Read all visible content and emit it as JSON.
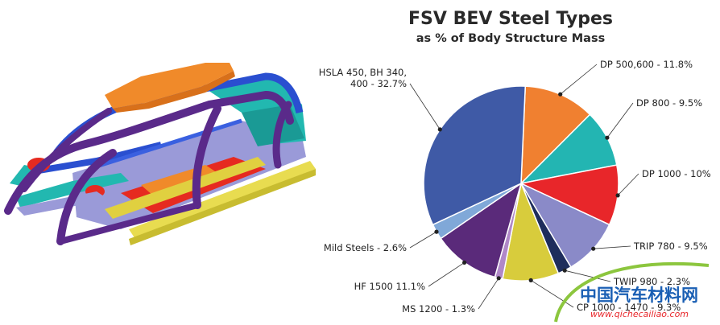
{
  "chart_data": {
    "type": "pie",
    "title": "FSV BEV Steel Types",
    "subtitle": "as % of Body Structure Mass",
    "slices": [
      {
        "label": "DP 500,600 - 11.8%",
        "value": 11.8,
        "color": "#f08030"
      },
      {
        "label": "DP 800 - 9.5%",
        "value": 9.5,
        "color": "#23b5b2"
      },
      {
        "label": "DP 1000 - 10%",
        "value": 10.0,
        "color": "#e8262a"
      },
      {
        "label": "TRIP 780 - 9.5%",
        "value": 9.5,
        "color": "#8a8ac8"
      },
      {
        "label": "TWIP 980 - 2.3%",
        "value": 2.3,
        "color": "#1e2d5c"
      },
      {
        "label": "CP 1000 - 1470 - 9.3%",
        "value": 9.3,
        "color": "#d8cc3c"
      },
      {
        "label": "MS 1200 - 1.3%",
        "value": 1.3,
        "color": "#b088c8"
      },
      {
        "label": "HF 1500 11.1%",
        "value": 11.1,
        "color": "#5a2a7a"
      },
      {
        "label": "Mild Steels - 2.6%",
        "value": 2.6,
        "color": "#80a8d8"
      },
      {
        "label": "HSLA 450, BH 340, 400 - 32.7%",
        "value": 32.7,
        "color": "#3f5aa6"
      }
    ]
  },
  "watermark": {
    "cn_text": "中国汽车材料网",
    "url_text": "www.qichecailiao.com"
  },
  "illustration": {
    "name": "vehicle body structure",
    "colors": {
      "roof": "#f08a2a",
      "pillar": "#5a2a8a",
      "frame_blue": "#2a4fd0",
      "teal": "#22b8b0",
      "red": "#e62a20",
      "yellow": "#e0d040",
      "lavender": "#9a9ad8"
    }
  }
}
